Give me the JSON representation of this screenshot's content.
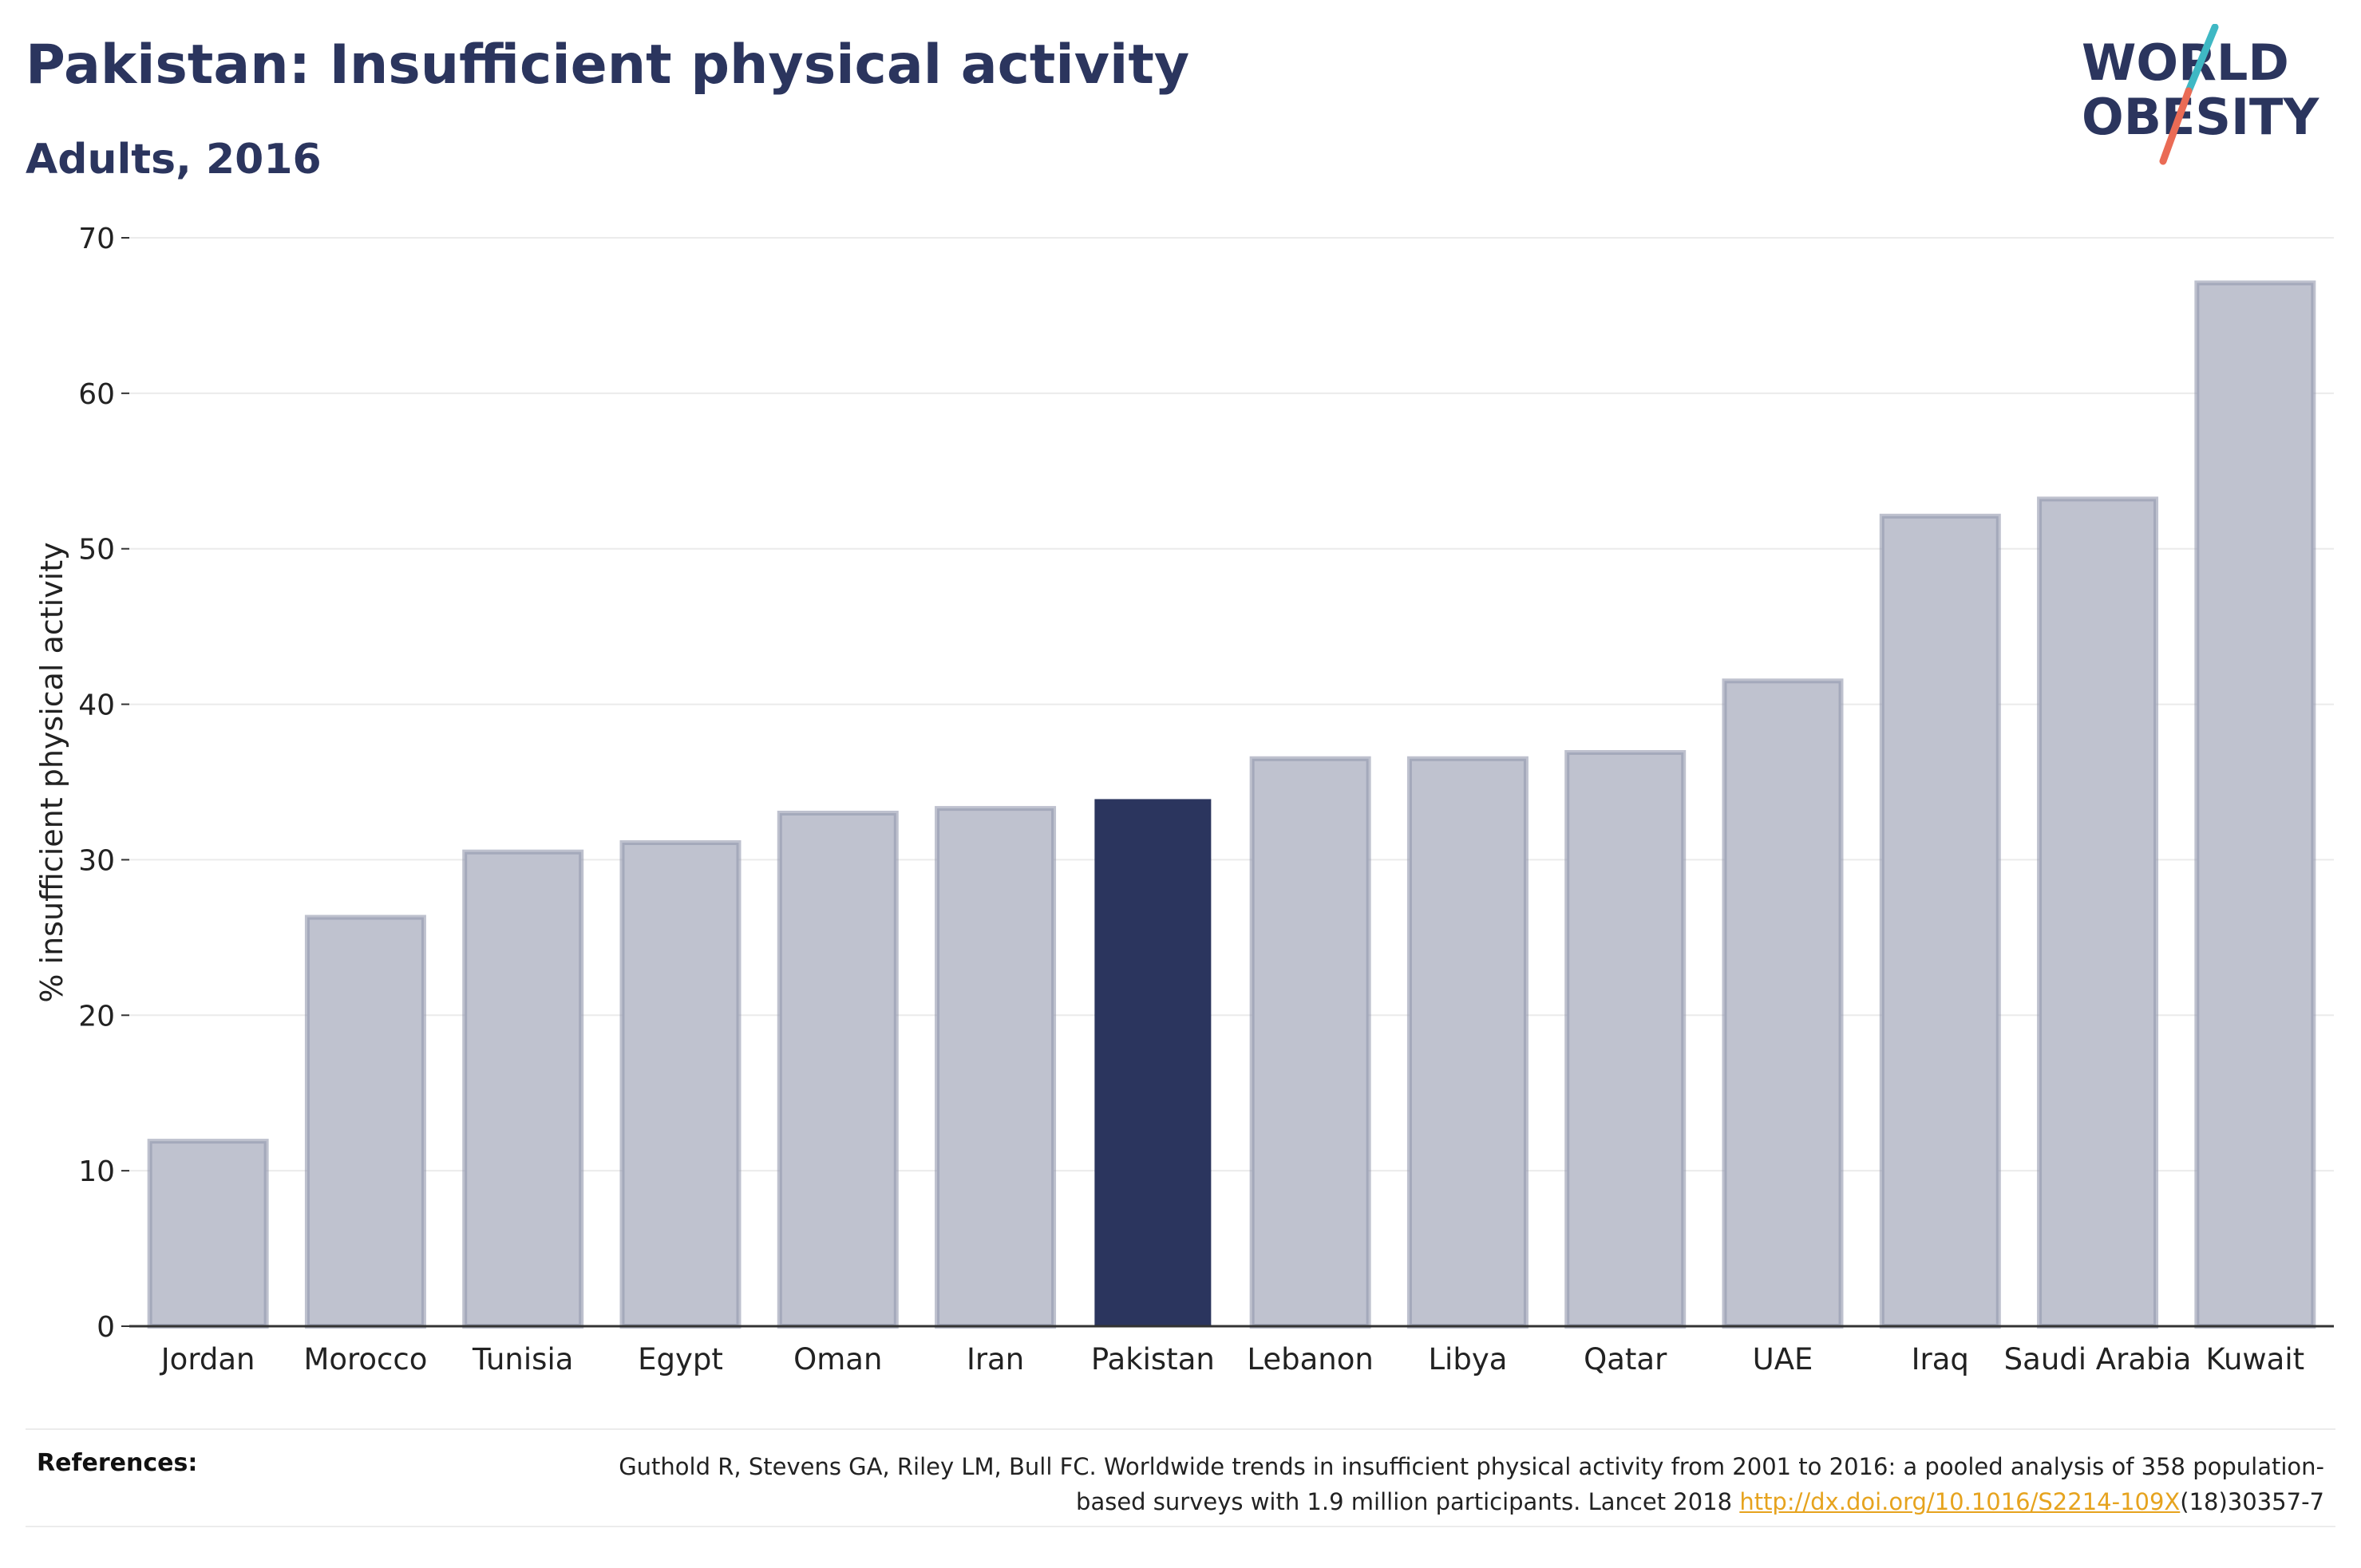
{
  "header": {
    "title": "Pakistan: Insufficient physical activity",
    "subtitle": "Adults, 2016"
  },
  "logo": {
    "line1": "WORLD",
    "line2": "OBESITY",
    "text_color": "#2b355e",
    "slash_top_color": "#3fb8c4",
    "slash_bottom_color": "#ea6b55"
  },
  "chart_data": {
    "type": "bar",
    "title": "Pakistan: Insufficient physical activity",
    "subtitle": "Adults, 2016",
    "xlabel": "",
    "ylabel": "% insufficient physical activity",
    "ylim": [
      0,
      70
    ],
    "yticks": [
      0,
      10,
      20,
      30,
      40,
      50,
      60,
      70
    ],
    "grid": true,
    "highlight": "Pakistan",
    "categories": [
      "Jordan",
      "Morocco",
      "Tunisia",
      "Egypt",
      "Oman",
      "Iran",
      "Pakistan",
      "Lebanon",
      "Libya",
      "Qatar",
      "UAE",
      "Iraq",
      "Saudi Arabia",
      "Kuwait"
    ],
    "values": [
      11.9,
      26.3,
      30.5,
      31.1,
      33.0,
      33.3,
      33.9,
      36.5,
      36.5,
      36.9,
      41.5,
      52.1,
      53.2,
      67.1
    ],
    "colors": {
      "highlight": "#2b355e",
      "other": "#bfc2cf",
      "other_border": "#9398ad",
      "grid": "#ebebeb",
      "axis": "#333333"
    }
  },
  "references": {
    "label": "References:",
    "text_before": "Guthold R, Stevens GA, Riley LM, Bull FC. Worldwide trends in insufficient physical activity from 2001 to 2016: a pooled analysis of 358 population-based surveys with 1.9 million participants. Lancet 2018 ",
    "link": "http://dx.doi.org/10.1016/S2214-109X",
    "text_after": "(18)30357-7"
  }
}
